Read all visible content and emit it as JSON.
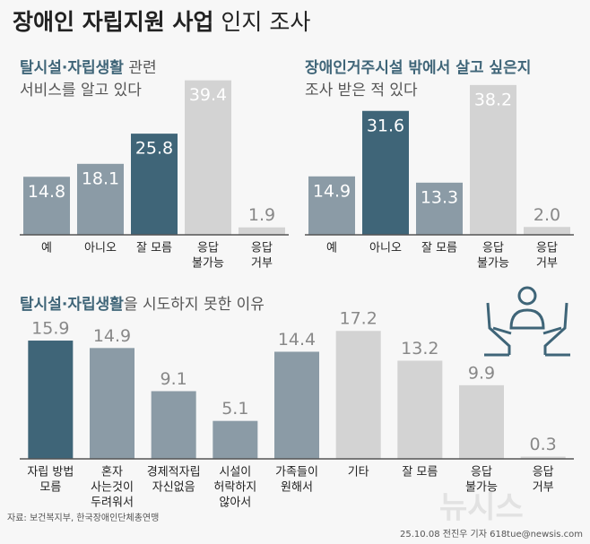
{
  "header": {
    "title": [
      {
        "text": "장애인 자립지원 사업",
        "bold": true
      },
      {
        "text": "인지 조사",
        "bold": false
      }
    ],
    "source": "자료: 보건복지부, 한국장애인단체총연맹",
    "credit": "25.10.08 전진우 기자 618tue@newsis.com",
    "watermark": "뉴시스"
  },
  "chart_data": [
    {
      "type": "bar",
      "title_lines": [
        [
          {
            "text": "탈시설·자립생활",
            "highlight": true
          },
          {
            "text": " 관련",
            "highlight": false
          }
        ],
        [
          {
            "text": "서비스를 알고 있다",
            "highlight": false
          }
        ]
      ],
      "categories": [
        [
          "예"
        ],
        [
          "아니오"
        ],
        [
          "잘 모름"
        ],
        [
          "응답",
          "불가능"
        ],
        [
          "응답",
          "거부"
        ]
      ],
      "values": [
        14.8,
        18.1,
        25.8,
        39.4,
        1.9
      ],
      "value_labels": [
        "14.8",
        "18.1",
        "25.8",
        "39.4",
        "1.9"
      ],
      "colors": [
        "#8b9ba6",
        "#8b9ba6",
        "#3f6578",
        "#d3d3d3",
        "#d3d3d3"
      ],
      "ylim": [
        0,
        40
      ],
      "label_position": "inside"
    },
    {
      "type": "bar",
      "title_lines": [
        [
          {
            "text": "장애인거주시설 밖에서 살고 싶은지",
            "highlight": true
          }
        ],
        [
          {
            "text": "조사 받은 적 있다",
            "highlight": false
          }
        ]
      ],
      "categories": [
        [
          "예"
        ],
        [
          "아니오"
        ],
        [
          "잘 모름"
        ],
        [
          "응답",
          "불가능"
        ],
        [
          "응답",
          "거부"
        ]
      ],
      "values": [
        14.9,
        31.6,
        13.3,
        38.2,
        2.0
      ],
      "value_labels": [
        "14.9",
        "31.6",
        "13.3",
        "38.2",
        "2.0"
      ],
      "colors": [
        "#8b9ba6",
        "#3f6578",
        "#8b9ba6",
        "#d3d3d3",
        "#d3d3d3"
      ],
      "ylim": [
        0,
        40
      ],
      "label_position": "inside"
    },
    {
      "type": "bar",
      "title_lines": [
        [
          {
            "text": "탈시설·자립생활",
            "highlight": true
          },
          {
            "text": "을 시도하지 못한 이유",
            "highlight": false
          }
        ]
      ],
      "categories": [
        [
          "자립 방법",
          "모름"
        ],
        [
          "혼자",
          "사는것이",
          "두려워서"
        ],
        [
          "경제적자립",
          "자신없음"
        ],
        [
          "시설이",
          "허락하지",
          "않아서"
        ],
        [
          "가족들이",
          "원해서"
        ],
        [
          "기타"
        ],
        [
          "잘 모름"
        ],
        [
          "응답",
          "불가능"
        ],
        [
          "응답",
          "거부"
        ]
      ],
      "values": [
        15.9,
        14.9,
        9.1,
        5.1,
        14.4,
        17.2,
        13.2,
        9.9,
        0.3
      ],
      "value_labels": [
        "15.9",
        "14.9",
        "9.1",
        "5.1",
        "14.4",
        "17.2",
        "13.2",
        "9.9",
        "0.3"
      ],
      "colors": [
        "#3f6578",
        "#8b9ba6",
        "#8b9ba6",
        "#8b9ba6",
        "#8b9ba6",
        "#d3d3d3",
        "#d3d3d3",
        "#d3d3d3",
        "#d3d3d3"
      ],
      "ylim": [
        0,
        20
      ],
      "label_position": "above"
    }
  ]
}
